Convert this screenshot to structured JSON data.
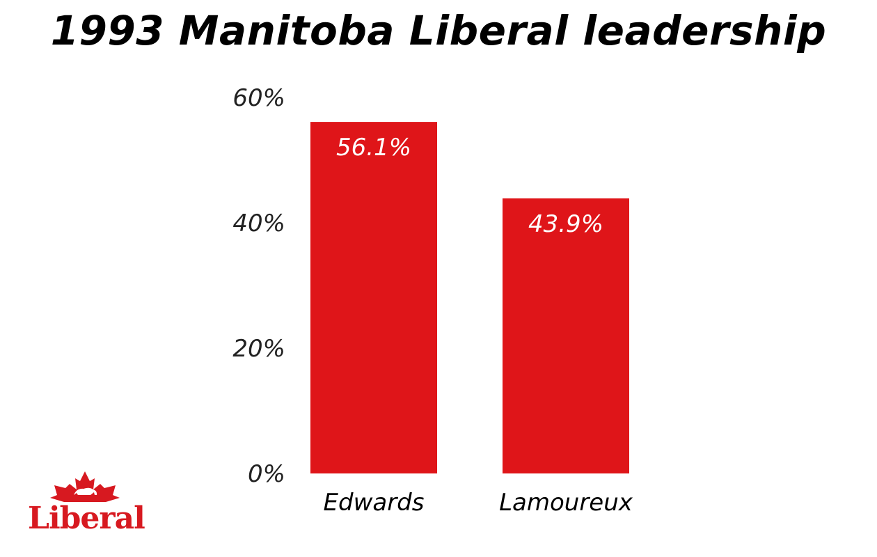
{
  "chart_data": {
    "type": "bar",
    "title": "1993 Manitoba Liberal leadership",
    "categories": [
      "Edwards",
      "Lamoureux"
    ],
    "values": [
      56.1,
      43.9
    ],
    "value_labels": [
      "56.1%",
      "43.9%"
    ],
    "yticks": [
      0,
      20,
      40,
      60
    ],
    "ytick_labels": [
      "0%",
      "20%",
      "40%",
      "60%"
    ],
    "ylim": [
      0,
      60
    ],
    "xlabel": "",
    "ylabel": "",
    "grid": false,
    "bar_color": "#df1519"
  },
  "logo": {
    "text": "Liberal",
    "color": "#d71920",
    "icon": "maple-leaf-icon"
  }
}
